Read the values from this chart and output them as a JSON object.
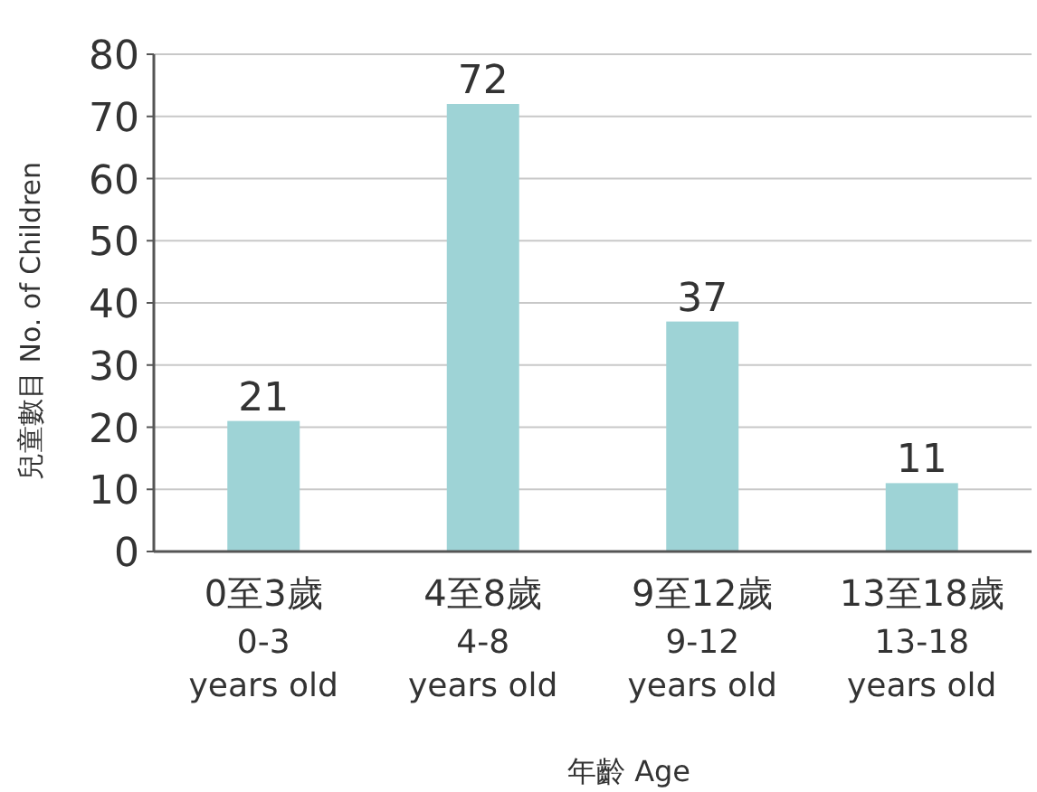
{
  "chart_data": {
    "type": "bar",
    "xlabel": "年齡 Age",
    "ylabel": "兒童數目 No. of Children",
    "categories": [
      "0至3歲\n0-3\nyears old",
      "4至8歲\n4-8\nyears old",
      "9至12歲\n9-12\nyears old",
      "13至18歲\n13-18\nyears old"
    ],
    "values": [
      21,
      72,
      37,
      11
    ],
    "color": "#9ed3d6",
    "ylim": [
      0,
      80
    ],
    "yticks": [
      0,
      10,
      20,
      30,
      40,
      50,
      60,
      70,
      80
    ],
    "grid": "y",
    "data_labels": true
  }
}
